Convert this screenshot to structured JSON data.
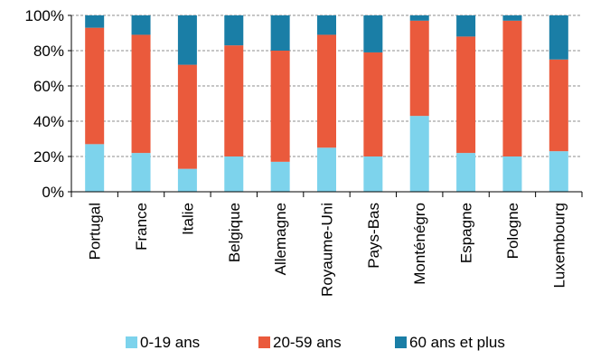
{
  "chart_data": {
    "type": "bar",
    "stacked": true,
    "percent": true,
    "categories": [
      "Portugal",
      "France",
      "Italie",
      "Belgique",
      "Allemagne",
      "Royaume-Uni",
      "Pays-Bas",
      "Monténégro",
      "Espagne",
      "Pologne",
      "Luxembourg"
    ],
    "series": [
      {
        "name": "0-19 ans",
        "color": "#7dd3ec",
        "values": [
          27,
          22,
          13,
          20,
          17,
          25,
          20,
          43,
          22,
          20,
          23
        ]
      },
      {
        "name": "20-59 ans",
        "color": "#ea5a3c",
        "values": [
          66,
          67,
          59,
          63,
          63,
          64,
          59,
          54,
          66,
          77,
          52
        ]
      },
      {
        "name": "60 ans et plus",
        "color": "#1a7ea6",
        "values": [
          7,
          11,
          28,
          17,
          20,
          11,
          21,
          3,
          12,
          3,
          25
        ]
      }
    ],
    "ylim": [
      0,
      100
    ],
    "yticks": [
      "0%",
      "20%",
      "40%",
      "60%",
      "80%",
      "100%"
    ],
    "grid": "horizontal dashed",
    "legend": "bottom"
  }
}
